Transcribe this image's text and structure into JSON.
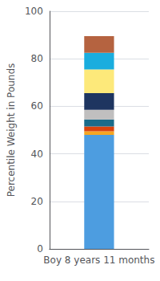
{
  "chart_data": {
    "type": "bar",
    "stacked": true,
    "categories": [
      "Boy 8 years 11 months"
    ],
    "series": [
      {
        "color": "#4d9de0",
        "values": [
          48
        ]
      },
      {
        "color": "#f5a623",
        "values": [
          1.5
        ]
      },
      {
        "color": "#d9430d",
        "values": [
          2
        ]
      },
      {
        "color": "#1a6b8a",
        "values": [
          3
        ]
      },
      {
        "color": "#c0bfbf",
        "values": [
          4
        ]
      },
      {
        "color": "#1e3560",
        "values": [
          7
        ]
      },
      {
        "color": "#fde97a",
        "values": [
          10
        ]
      },
      {
        "color": "#1aadde",
        "values": [
          7
        ]
      },
      {
        "color": "#b56340",
        "values": [
          7
        ]
      }
    ],
    "ylabel": "Percentile Weight in Pounds",
    "ylim": [
      0,
      100
    ],
    "yticks": [
      0,
      20,
      40,
      60,
      80,
      100
    ],
    "grid": true
  }
}
